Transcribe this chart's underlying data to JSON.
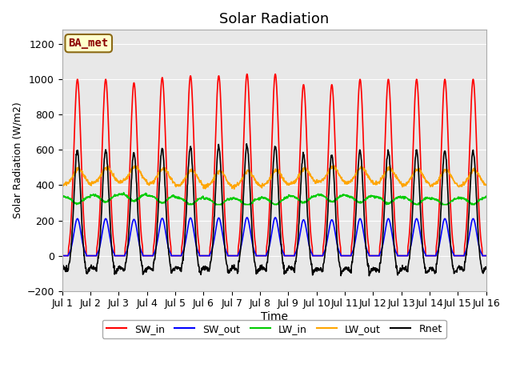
{
  "title": "Solar Radiation",
  "xlabel": "Time",
  "ylabel": "Solar Radiation (W/m2)",
  "station_label": "BA_met",
  "ylim": [
    -200,
    1280
  ],
  "yticks": [
    -200,
    0,
    200,
    400,
    600,
    800,
    1000,
    1200
  ],
  "days": 15,
  "hours_per_day": 24,
  "dt_hours": 0.25,
  "SW_in_peak": 1000,
  "LW_in_base": 335,
  "LW_in_amp": 40,
  "LW_out_base": 400,
  "LW_out_amp": 90,
  "colors": {
    "SW_in": "#ff0000",
    "SW_out": "#0000ff",
    "LW_in": "#00cc00",
    "LW_out": "#ffa500",
    "Rnet": "#000000"
  },
  "linewidth": 1.2,
  "fig_bg": "#ffffff",
  "plot_bg": "#e8e8e8",
  "legend_labels": [
    "SW_in",
    "SW_out",
    "LW_in",
    "LW_out",
    "Rnet"
  ]
}
